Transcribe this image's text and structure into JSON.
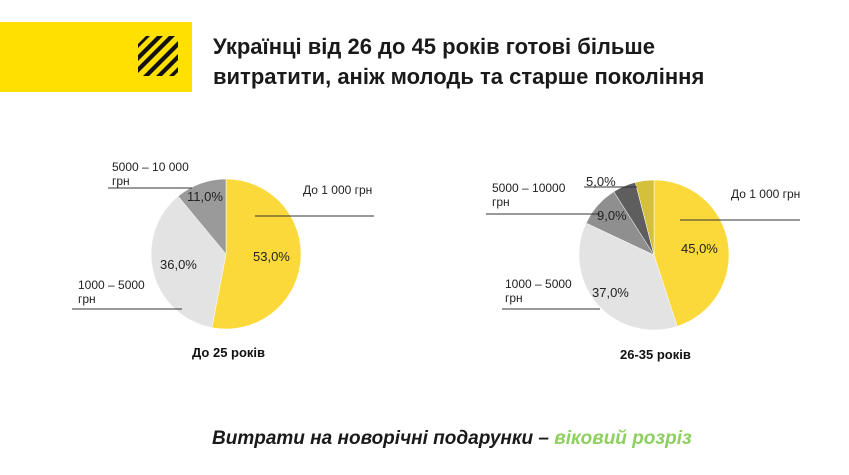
{
  "header": {
    "title_line1": "Українці від 26 до 45 років готові більше",
    "title_line2": "витратити, аніж молодь та старше покоління",
    "brand_color": "#ffe000"
  },
  "footer": {
    "text_main": "Витрати на новорічні подарунки – ",
    "text_accent": "віковий розріз",
    "accent_color": "#8ed05f"
  },
  "chart_data": [
    {
      "type": "pie",
      "title": "До 25 років",
      "slices": [
        {
          "label": "До 1 000 грн",
          "value": 53.0,
          "display": "53,0%",
          "color": "#fbd93a"
        },
        {
          "label": "1000 – 5000 грн",
          "value": 36.0,
          "display": "36,0%",
          "color": "#e3e3e3"
        },
        {
          "label": "5000 – 10 000 грн",
          "value": 11.0,
          "display": "11,0%",
          "color": "#9a9a9a"
        }
      ]
    },
    {
      "type": "pie",
      "title": "26-35 років",
      "slices": [
        {
          "label": "До 1 000 грн",
          "value": 45.0,
          "display": "45,0%",
          "color": "#fbd93a"
        },
        {
          "label": "1000 – 5000 грн",
          "value": 37.0,
          "display": "37,0%",
          "color": "#e3e3e3"
        },
        {
          "label": "5000 – 10000 грн",
          "value": 9.0,
          "display": "9,0%",
          "color": "#8f8f8f"
        },
        {
          "label": "",
          "value": 5.0,
          "display": "5,0%",
          "color": "#5e5e5e"
        },
        {
          "label": "",
          "value": 4.0,
          "display": "",
          "color": "#d4c03a"
        }
      ]
    }
  ]
}
